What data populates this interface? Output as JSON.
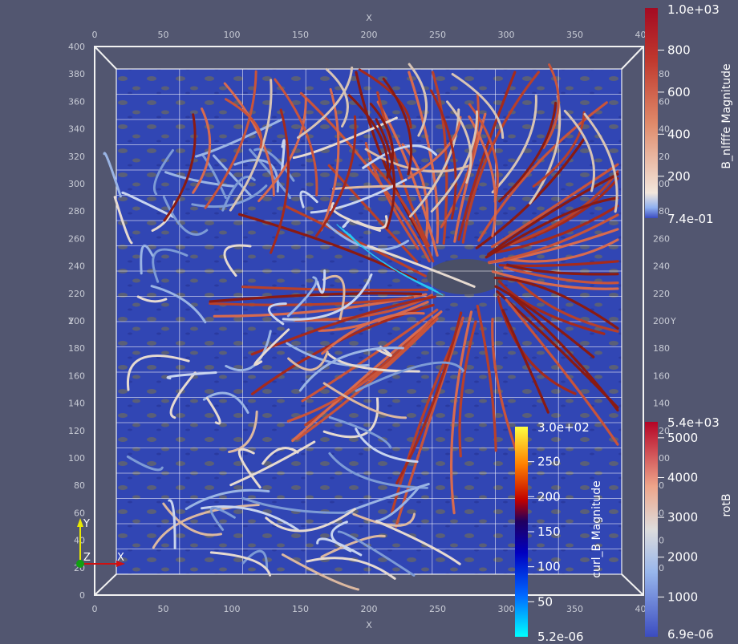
{
  "axes": {
    "x_label": "X",
    "y_label": "Y",
    "x_ticks": [
      "0",
      "50",
      "100",
      "150",
      "200",
      "250",
      "300",
      "350",
      "400"
    ],
    "y_ticks": [
      "0",
      "20",
      "40",
      "60",
      "80",
      "100",
      "120",
      "140",
      "160",
      "180",
      "200",
      "220",
      "240",
      "260",
      "280",
      "300",
      "320",
      "340",
      "360",
      "380",
      "400"
    ],
    "right_y_ticks": [
      "20",
      "40",
      "60",
      "80",
      "100",
      "120",
      "140",
      "160",
      "180",
      "200",
      "220",
      "240",
      "260",
      "280",
      "300",
      "320",
      "340",
      "360",
      "380"
    ]
  },
  "colorbars": {
    "b_nlfffe": {
      "title": "B_nlfffe Magnitude",
      "max_label": "1.0e+03",
      "min_label": "7.4e-01",
      "ticks": [
        "800",
        "600",
        "400",
        "200"
      ]
    },
    "rotB": {
      "title": "rotB",
      "max_label": "5.4e+03",
      "min_label": "6.9e-06",
      "ticks": [
        "5000",
        "4000",
        "3000",
        "2000",
        "1000"
      ]
    },
    "curl_B": {
      "title": "curl_B Magnitude",
      "max_label": "3.0e+02",
      "min_label": "5.2e-06",
      "ticks": [
        "250",
        "200",
        "150",
        "100",
        "50"
      ]
    }
  },
  "orientation_triad": {
    "y": "Y",
    "z": "Z",
    "x": "X"
  },
  "colors": {
    "background": "#525670",
    "surface": "#2f42b0",
    "line_hot": "#b8402a",
    "line_cool": "#8aa6d8",
    "line_neutral": "#dcc8b8"
  }
}
